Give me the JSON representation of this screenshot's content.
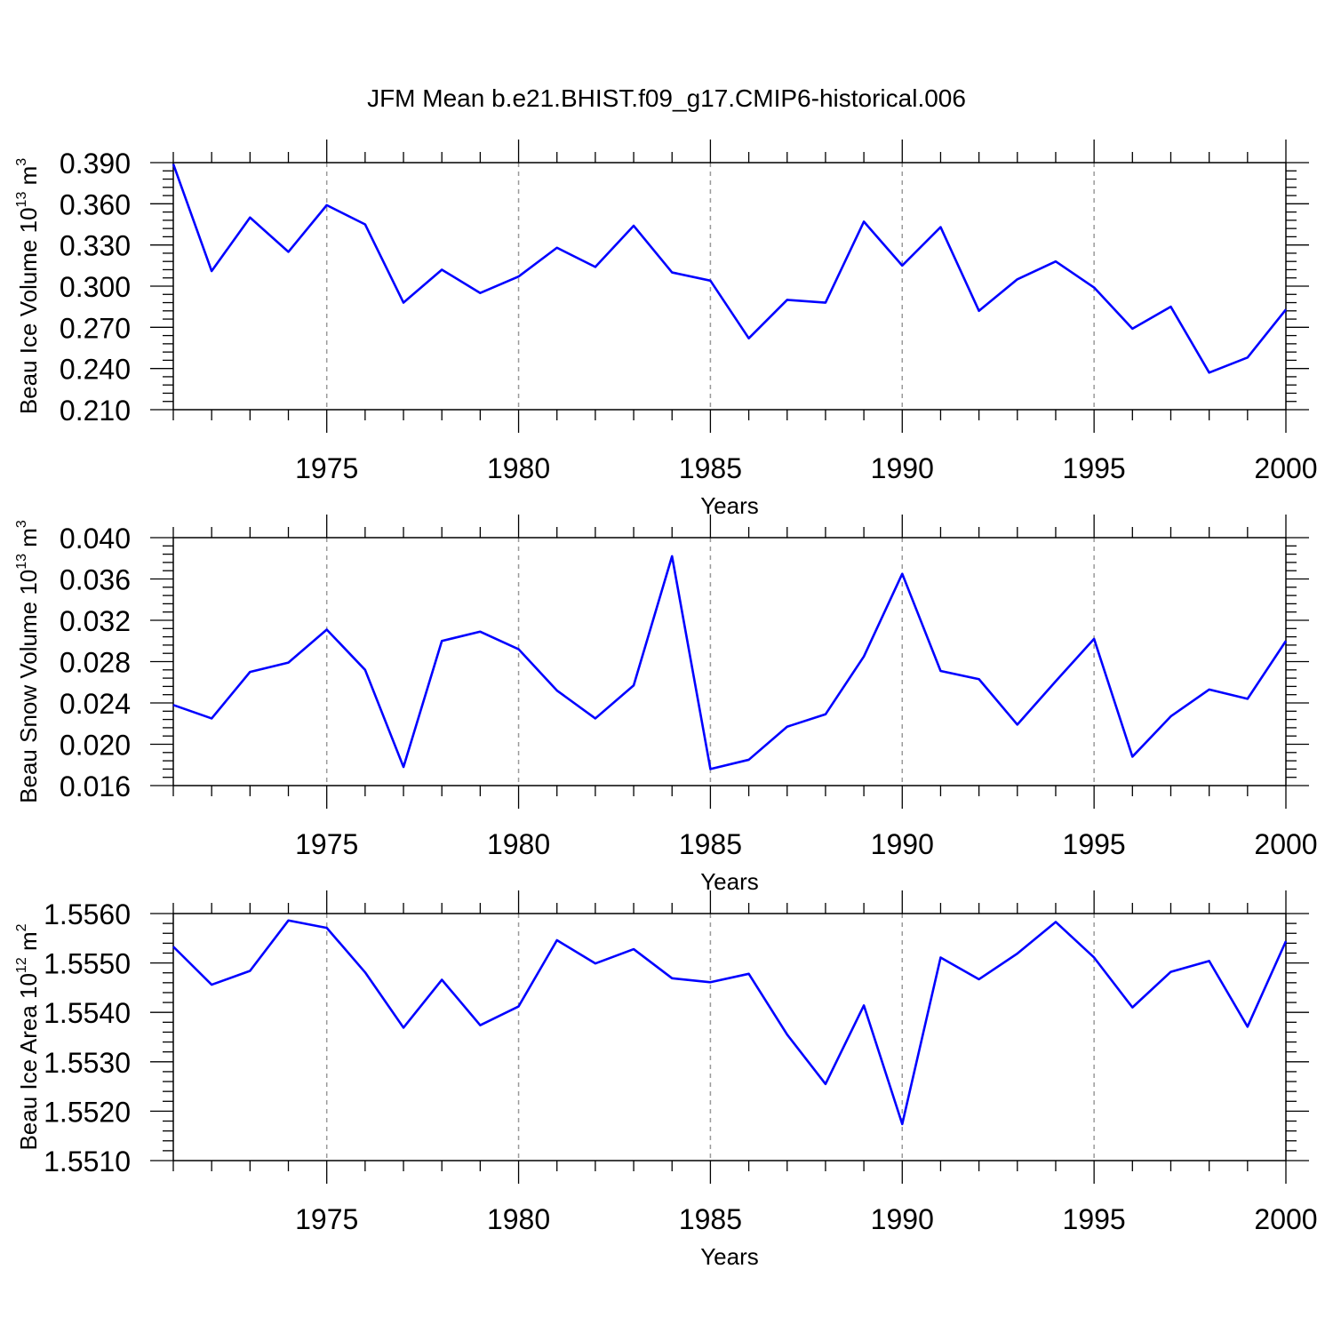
{
  "figure": {
    "title": "JFM Mean b.e21.BHIST.f09_g17.CMIP6-historical.006"
  },
  "colors": {
    "series": "#0000ff",
    "axis": "#000000",
    "grid": "#9a9a9a"
  },
  "chart_data": [
    {
      "type": "line",
      "title": "",
      "xlabel": "Years",
      "ylabel": {
        "text": "Beau Ice Volume 10",
        "exp": "13",
        "unit": " m",
        "unit_exp": "3"
      },
      "xlim": [
        1971,
        2000
      ],
      "ylim": [
        0.21,
        0.39
      ],
      "xticks": [
        "1975",
        "1980",
        "1985",
        "1990",
        "1995",
        "2000"
      ],
      "yticks": [
        "0.390",
        "0.360",
        "0.330",
        "0.300",
        "0.270",
        "0.240",
        "0.210"
      ],
      "grid": "vertical dashed at major x ticks",
      "x": [
        1971,
        1972,
        1973,
        1974,
        1975,
        1976,
        1977,
        1978,
        1979,
        1980,
        1981,
        1982,
        1983,
        1984,
        1985,
        1986,
        1987,
        1988,
        1989,
        1990,
        1991,
        1992,
        1993,
        1994,
        1995,
        1996,
        1997,
        1998,
        1999,
        2000
      ],
      "series": [
        {
          "values": [
            0.389,
            0.311,
            0.35,
            0.325,
            0.359,
            0.345,
            0.288,
            0.312,
            0.295,
            0.307,
            0.328,
            0.314,
            0.344,
            0.31,
            0.304,
            0.262,
            0.29,
            0.288,
            0.347,
            0.315,
            0.343,
            0.282,
            0.305,
            0.318,
            0.299,
            0.269,
            0.285,
            0.237,
            0.248,
            0.283
          ]
        }
      ]
    },
    {
      "type": "line",
      "title": "",
      "xlabel": "Years",
      "ylabel": {
        "text": "Beau Snow Volume 10",
        "exp": "13",
        "unit": " m",
        "unit_exp": "3"
      },
      "xlim": [
        1971,
        2000
      ],
      "ylim": [
        0.016,
        0.04
      ],
      "xticks": [
        "1975",
        "1980",
        "1985",
        "1990",
        "1995",
        "2000"
      ],
      "yticks": [
        "0.040",
        "0.036",
        "0.032",
        "0.028",
        "0.024",
        "0.020",
        "0.016"
      ],
      "grid": "vertical dashed at major x ticks",
      "x": [
        1971,
        1972,
        1973,
        1974,
        1975,
        1976,
        1977,
        1978,
        1979,
        1980,
        1981,
        1982,
        1983,
        1984,
        1985,
        1986,
        1987,
        1988,
        1989,
        1990,
        1991,
        1992,
        1993,
        1994,
        1995,
        1996,
        1997,
        1998,
        1999,
        2000
      ],
      "series": [
        {
          "values": [
            0.0238,
            0.0225,
            0.027,
            0.0279,
            0.0311,
            0.0272,
            0.0178,
            0.03,
            0.0309,
            0.0292,
            0.0252,
            0.0225,
            0.0257,
            0.0382,
            0.0176,
            0.0185,
            0.0217,
            0.0229,
            0.0285,
            0.0365,
            0.0271,
            0.0263,
            0.0219,
            0.0261,
            0.0302,
            0.0188,
            0.0227,
            0.0253,
            0.0244,
            0.03
          ]
        }
      ]
    },
    {
      "type": "line",
      "title": "",
      "xlabel": "Years",
      "ylabel": {
        "text": "Beau Ice Area 10",
        "exp": "12",
        "unit": " m",
        "unit_exp": "2"
      },
      "xlim": [
        1971,
        2000
      ],
      "ylim": [
        1.551,
        1.556
      ],
      "xticks": [
        "1975",
        "1980",
        "1985",
        "1990",
        "1995",
        "2000"
      ],
      "yticks": [
        "1.5560",
        "1.5550",
        "1.5540",
        "1.5530",
        "1.5520",
        "1.5510"
      ],
      "grid": "vertical dashed at major x ticks",
      "x": [
        1971,
        1972,
        1973,
        1974,
        1975,
        1976,
        1977,
        1978,
        1979,
        1980,
        1981,
        1982,
        1983,
        1984,
        1985,
        1986,
        1987,
        1988,
        1989,
        1990,
        1991,
        1992,
        1993,
        1994,
        1995,
        1996,
        1997,
        1998,
        1999,
        2000
      ],
      "series": [
        {
          "values": [
            1.55533,
            1.55456,
            1.55484,
            1.55586,
            1.55571,
            1.55481,
            1.55369,
            1.55466,
            1.55374,
            1.55412,
            1.55546,
            1.55499,
            1.55528,
            1.55469,
            1.55461,
            1.55478,
            1.55355,
            1.55255,
            1.55414,
            1.55174,
            1.55511,
            1.55467,
            1.55519,
            1.55583,
            1.55511,
            1.5541,
            1.55482,
            1.55504,
            1.55371,
            1.55544
          ]
        }
      ]
    }
  ]
}
